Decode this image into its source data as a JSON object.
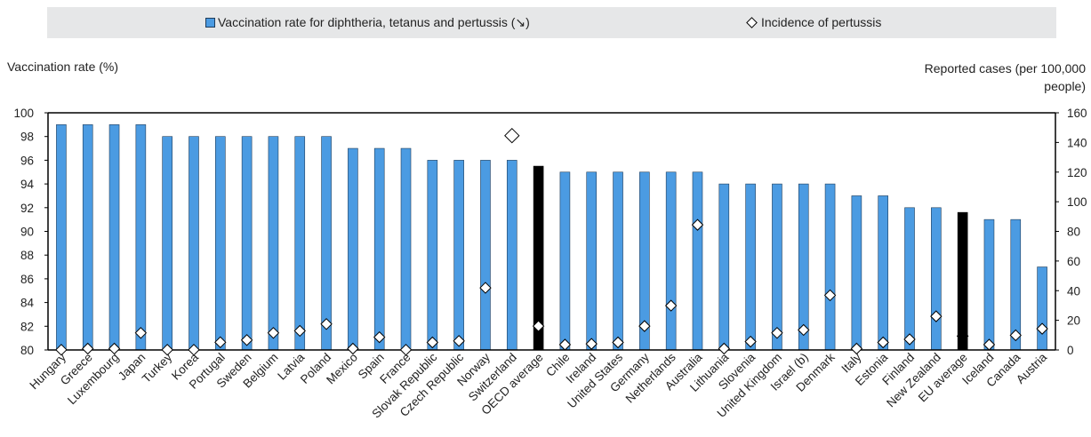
{
  "chart_data": {
    "type": "bar",
    "legend": {
      "placement": "top",
      "bar_label": "Vaccination rate for diphtheria, tetanus and pertussis (↘)",
      "marker_label": "Incidence of pertussis"
    },
    "ylabel_left": "Vaccination rate (%)",
    "ylabel_right_line1": "Reported cases (per 100,000",
    "ylabel_right_line2": "people)",
    "ylim_left": [
      80,
      100
    ],
    "yticks_left": [
      80,
      82,
      84,
      86,
      88,
      90,
      92,
      94,
      96,
      98,
      100
    ],
    "ylim_right": [
      0,
      160
    ],
    "yticks_right": [
      0,
      20,
      40,
      60,
      80,
      100,
      120,
      140,
      160
    ],
    "grid": false,
    "colors": {
      "bar": "#4b9be2",
      "bar_edge": "#1f3c5a",
      "highlight": "#000000"
    },
    "categories": [
      "Hungary",
      "Greece",
      "Luxembourg",
      "Japan",
      "Turkey",
      "Korea",
      "Portugal",
      "Sweden",
      "Belgium",
      "Latvia",
      "Poland",
      "Mexico",
      "Spain",
      "France",
      "Slovak Republic",
      "Czech Republic",
      "Norway",
      "Switzerland",
      "OECD average",
      "Chile",
      "Ireland",
      "United States",
      "Germany",
      "Netherlands",
      "Australia",
      "Lithuania",
      "Slovenia",
      "United Kingdom",
      "Israel (b)",
      "Denmark",
      "Italy",
      "Estonia",
      "Finland",
      "New Zealand",
      "EU average",
      "Iceland",
      "Canada",
      "Austria"
    ],
    "highlighted": [
      "OECD average",
      "EU average"
    ],
    "series": [
      {
        "name": "Vaccination rate for diphtheria, tetanus and pertussis (↘)",
        "axis": "left",
        "kind": "bar",
        "values": [
          99,
          99,
          99,
          99,
          98,
          98,
          98,
          98,
          98,
          98,
          98,
          97,
          97,
          97,
          96,
          96,
          96,
          96,
          95.5,
          95,
          95,
          95,
          95,
          95,
          95,
          94,
          94,
          94,
          94,
          94,
          93,
          93,
          92,
          92,
          91.6,
          91,
          91,
          87
        ]
      },
      {
        "name": "Incidence of pertussis",
        "axis": "right",
        "kind": "marker",
        "values": [
          0.1,
          0.9,
          0.9,
          11.5,
          0.1,
          0.1,
          5.2,
          6.7,
          11.5,
          12.9,
          17.5,
          0.9,
          8.6,
          0.1,
          5.1,
          6.1,
          41.9,
          144.6,
          16.1,
          3.6,
          4.1,
          5.1,
          16.1,
          29.9,
          84.4,
          0.9,
          5.6,
          11.5,
          13.5,
          36.9,
          0.9,
          5.1,
          7.2,
          22.7,
          9.4,
          3.6,
          9.9,
          14.3
        ]
      }
    ]
  }
}
